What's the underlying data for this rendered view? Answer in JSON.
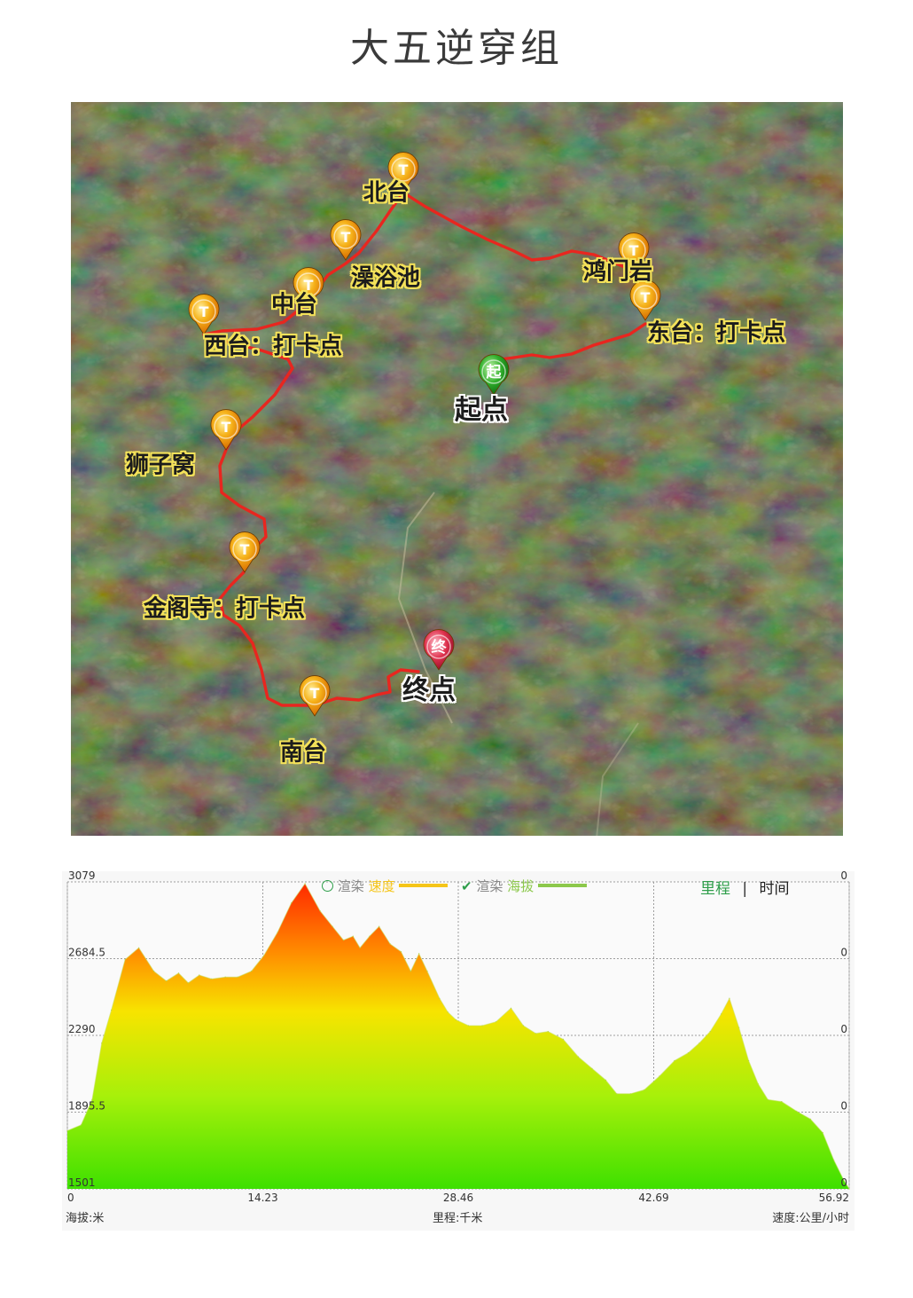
{
  "title": "大五逆穿组",
  "map": {
    "waypoints": [
      {
        "id": "beitai",
        "label": "北台"
      },
      {
        "id": "zaoyuchi",
        "label": "澡浴池"
      },
      {
        "id": "zhongtai",
        "label": "中台"
      },
      {
        "id": "xitai",
        "label": "西台：打卡点"
      },
      {
        "id": "shiziwo",
        "label": "狮子窝"
      },
      {
        "id": "jingesi",
        "label": "金阁寺：打卡点"
      },
      {
        "id": "nantai",
        "label": "南台"
      },
      {
        "id": "hongmenyan",
        "label": "鸿门岩"
      },
      {
        "id": "dongtai",
        "label": "东台：打卡点"
      }
    ],
    "start": {
      "glyph": "起",
      "label": "起点"
    },
    "end": {
      "glyph": "终",
      "label": "终点"
    },
    "waypoint_glyph": "T",
    "route_color": "#e8261f"
  },
  "profile": {
    "legend": {
      "render1": "渲染",
      "speed": "速度",
      "render2": "渲染",
      "altitude": "海拔",
      "tab_distance": "里程",
      "tab_separator": "|",
      "tab_time": "时间"
    },
    "units": {
      "y_left": "海拔:米",
      "x": "里程:千米",
      "y_right": "速度:公里/小时"
    },
    "colors": {
      "speed": "#f5c518",
      "altitude": "#8cc84b",
      "high": "#ff2a00",
      "low": "#3ee000"
    }
  },
  "chart_data": {
    "type": "area",
    "xlabel": "里程:千米",
    "ylabel": "海拔:米",
    "y2label": "速度:公里/小时",
    "xlim": [
      0,
      56.92
    ],
    "ylim": [
      1501,
      3079
    ],
    "x_ticks": [
      "0",
      "14.23",
      "28.46",
      "42.69",
      "56.92"
    ],
    "y_ticks": [
      "3079",
      "2684.5",
      "2290",
      "1895.5",
      "1501"
    ],
    "y2_ticks": [
      "0",
      "0",
      "0",
      "0",
      "0"
    ],
    "series": [
      {
        "name": "海拔",
        "x": [
          0,
          1.0,
          1.8,
          2.5,
          3.2,
          4.2,
          5.2,
          6.3,
          7.2,
          8.1,
          8.8,
          9.6,
          10.5,
          11.5,
          12.4,
          13.4,
          14.3,
          15.3,
          16.3,
          17.3,
          18.4,
          19.3,
          20.1,
          20.8,
          21.3,
          22.0,
          22.7,
          23.5,
          24.3,
          25.0,
          25.6,
          26.2,
          27.1,
          27.7,
          28.3,
          29.2,
          30.2,
          31.2,
          32.3,
          33.2,
          34.1,
          35.0,
          36.1,
          37.2,
          38.2,
          39.2,
          40.0,
          41.0,
          42.0,
          43.1,
          44.2,
          45.2,
          46.0,
          46.8,
          47.6,
          48.2,
          48.9,
          49.6,
          50.3,
          51.0,
          52.0,
          53.1,
          54.1,
          55.0,
          55.8,
          56.5,
          56.92
        ],
        "values": [
          1800,
          1830,
          1960,
          2250,
          2420,
          2680,
          2740,
          2620,
          2570,
          2610,
          2560,
          2600,
          2580,
          2590,
          2590,
          2620,
          2700,
          2820,
          2970,
          3070,
          2930,
          2850,
          2780,
          2800,
          2740,
          2800,
          2850,
          2760,
          2720,
          2620,
          2710,
          2620,
          2480,
          2410,
          2370,
          2340,
          2340,
          2360,
          2430,
          2340,
          2300,
          2310,
          2270,
          2180,
          2120,
          2060,
          1990,
          1990,
          2010,
          2080,
          2160,
          2200,
          2250,
          2310,
          2400,
          2480,
          2330,
          2160,
          2040,
          1960,
          1950,
          1900,
          1860,
          1790,
          1650,
          1550,
          1501
        ]
      }
    ],
    "grid": true,
    "legend": [
      "速度",
      "海拔"
    ]
  }
}
